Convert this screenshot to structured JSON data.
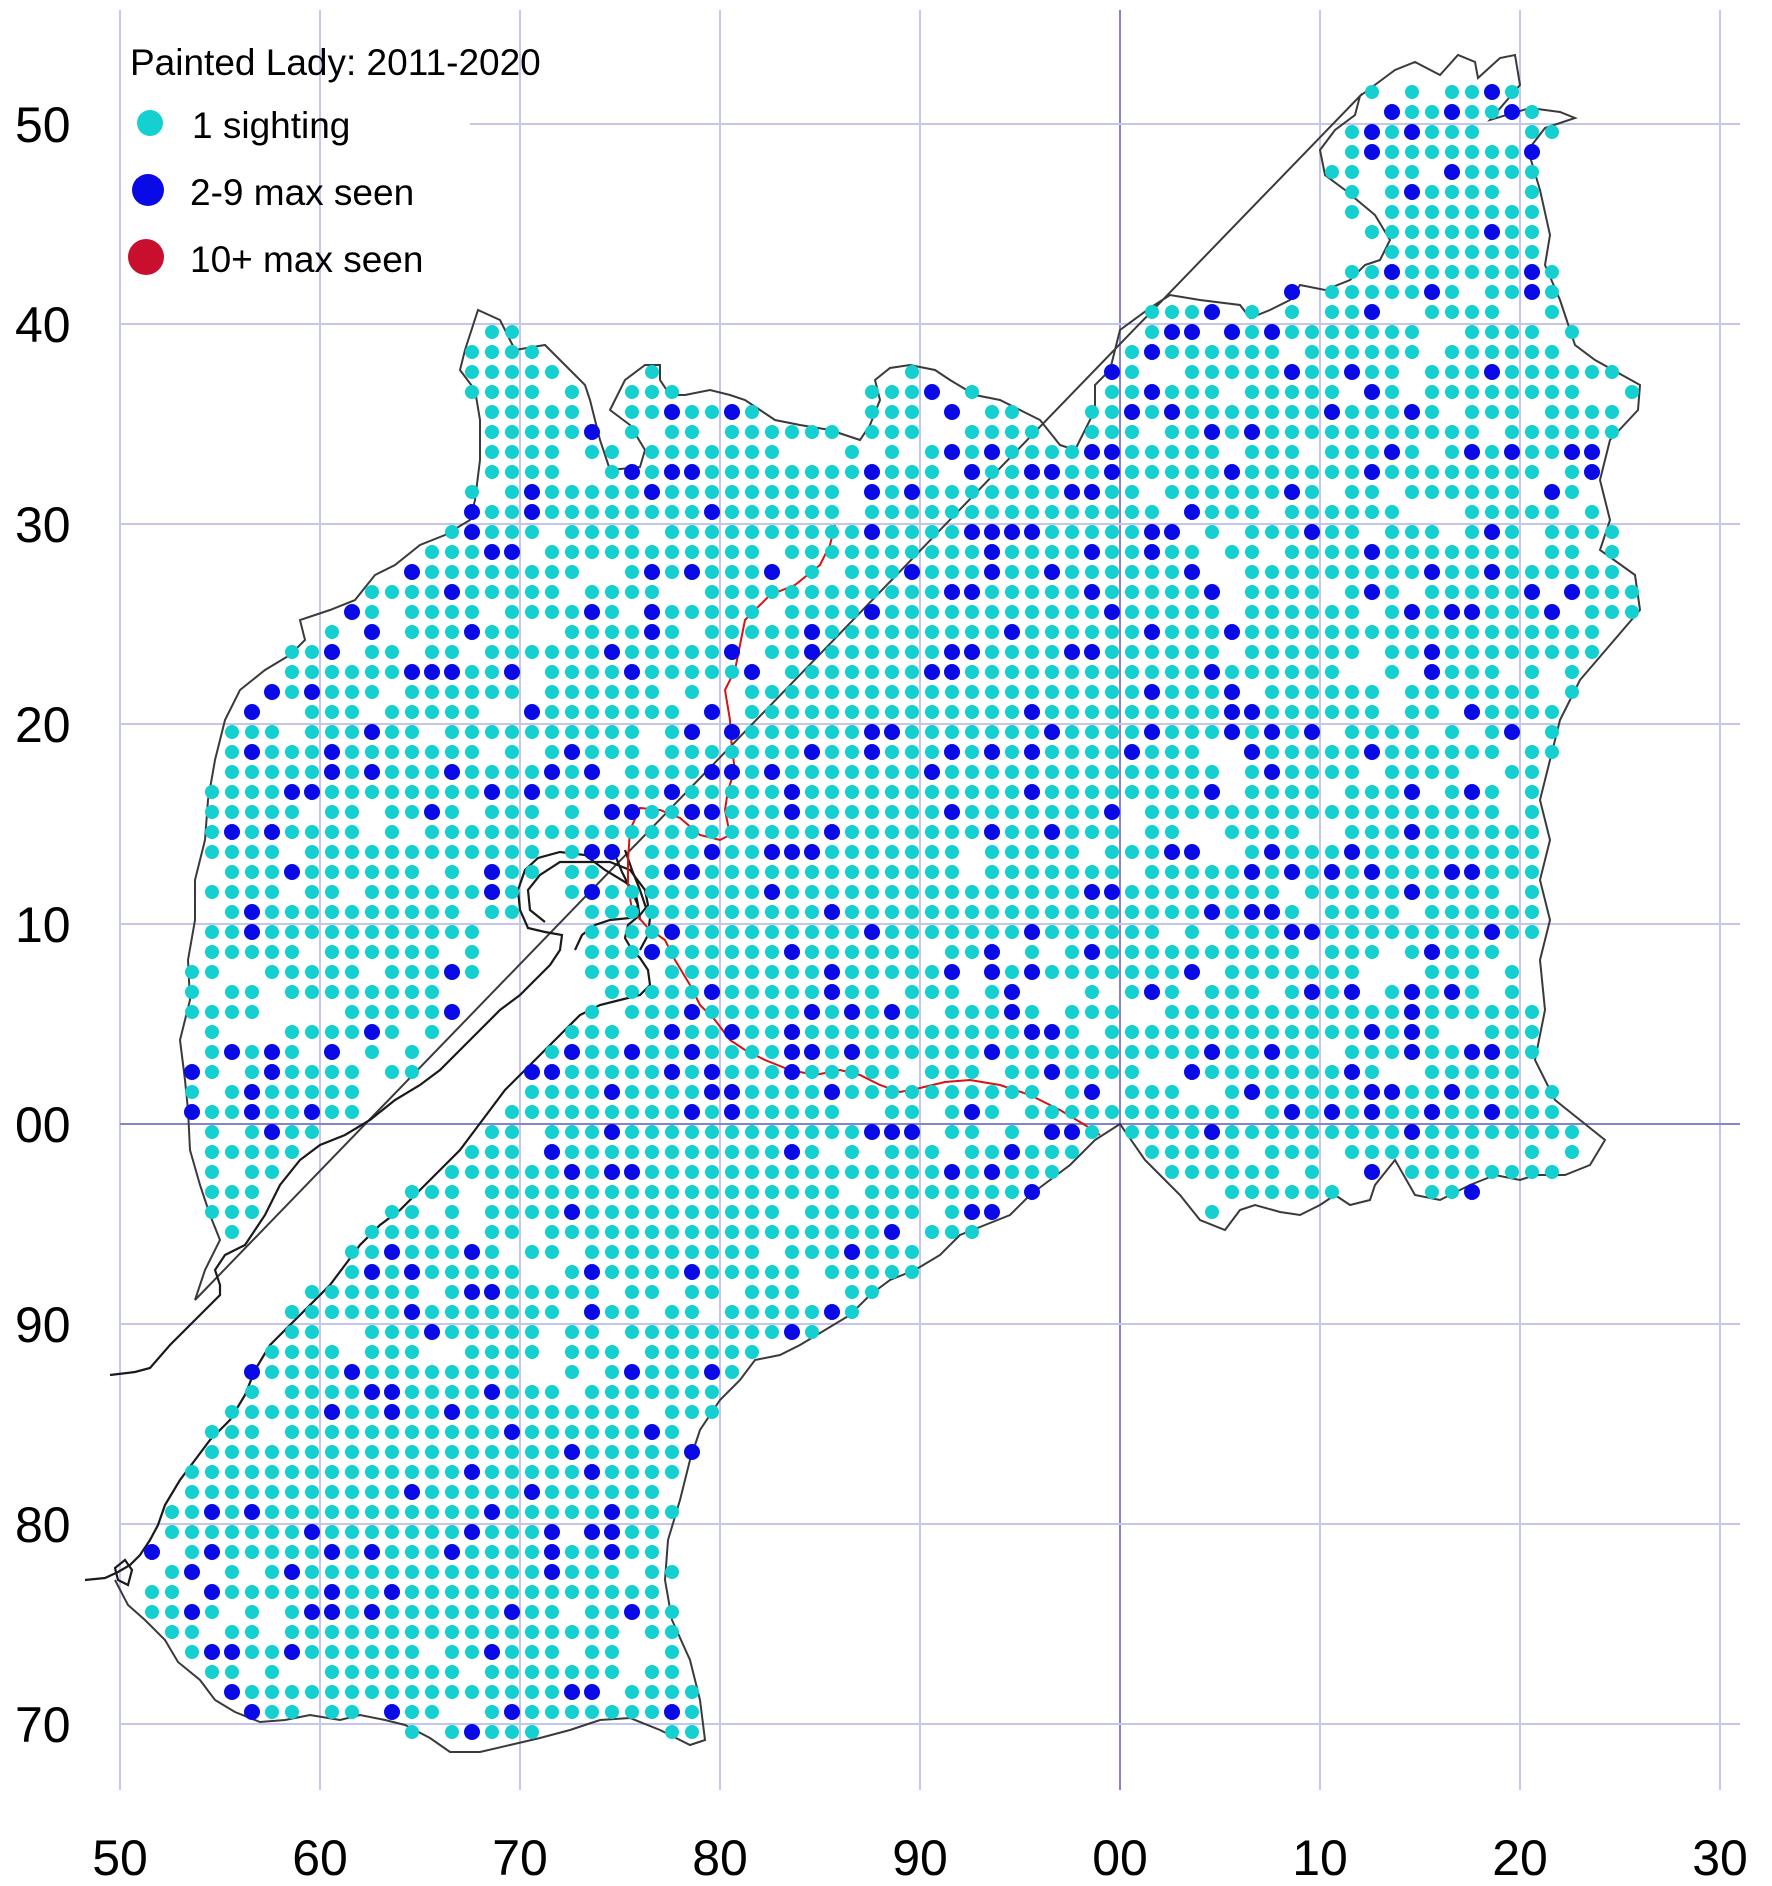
{
  "map": {
    "title": "Painted Lady:  2011-2020",
    "legend": [
      {
        "label": "1 sighting",
        "color": "#14d0d0",
        "size": "small"
      },
      {
        "label": "2-9 max seen",
        "color": "#0a0ae6",
        "size": "medium"
      },
      {
        "label": "10+ max seen",
        "color": "#c8102e",
        "size": "large"
      }
    ],
    "x_ticks": [
      "50",
      "60",
      "70",
      "80",
      "90",
      "00",
      "10",
      "20",
      "30"
    ],
    "y_ticks": [
      "50",
      "40",
      "30",
      "20",
      "10",
      "00",
      "90",
      "80",
      "70"
    ],
    "colors": {
      "one": "#14d0d0",
      "few": "#0a0ae6",
      "many": "#c8102e"
    }
  }
}
